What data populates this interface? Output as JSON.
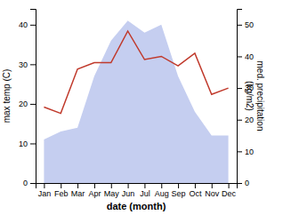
{
  "chart_data": {
    "type": "line",
    "xlabel": "date (month)",
    "ylabel": "max temp (C)",
    "y2label": "med. precipitation\n(kg/m2)",
    "categories": [
      "Jan",
      "Feb",
      "Mar",
      "Apr",
      "May",
      "Jun",
      "Jul",
      "Aug",
      "Sep",
      "Oct",
      "Nov",
      "Dec"
    ],
    "series": [
      {
        "type": "area",
        "color": "#c5cef0",
        "values": [
          11,
          13,
          14,
          27,
          36,
          41,
          38,
          40,
          27,
          18,
          12,
          12
        ]
      },
      {
        "type": "line",
        "axis": "y2",
        "color": "#c0392b",
        "values": [
          24,
          22,
          36,
          38,
          38,
          48,
          39,
          40,
          37,
          41,
          28,
          30
        ]
      }
    ],
    "ylim": [
      0,
      44
    ],
    "yticks": [
      0,
      10,
      20,
      30,
      40
    ],
    "y2lim": [
      0,
      55
    ],
    "y2ticks": [
      0,
      10,
      20,
      30,
      40,
      50
    ],
    "grid": false
  }
}
